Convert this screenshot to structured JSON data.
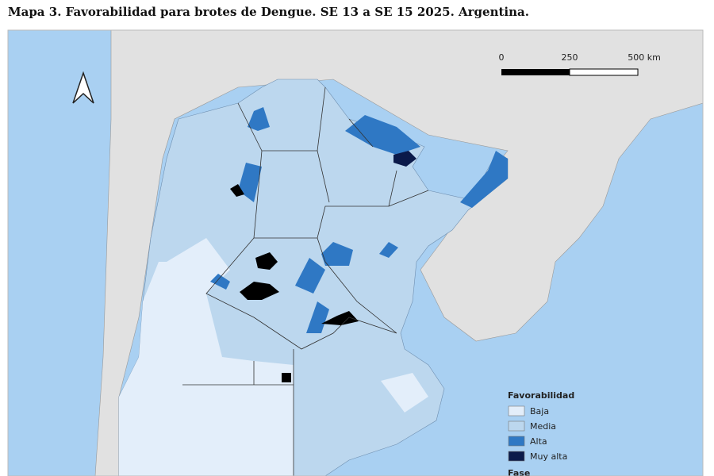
{
  "title": "Mapa 3. Favorabilidad para brotes de Dengue. SE 13 a SE 15 2025. Argentina.",
  "scale_bar": {
    "labels": [
      "0",
      "250",
      "500 km"
    ]
  },
  "legend": {
    "title": "Favorabilidad",
    "items": [
      {
        "label": "Baja",
        "color": "#e3eefa"
      },
      {
        "label": "Media",
        "color": "#bcd7ee"
      },
      {
        "label": "Alta",
        "color": "#2f78c4"
      },
      {
        "label": "Muy alta",
        "color": "#0b1a4a"
      }
    ],
    "next_title": "Fase"
  }
}
